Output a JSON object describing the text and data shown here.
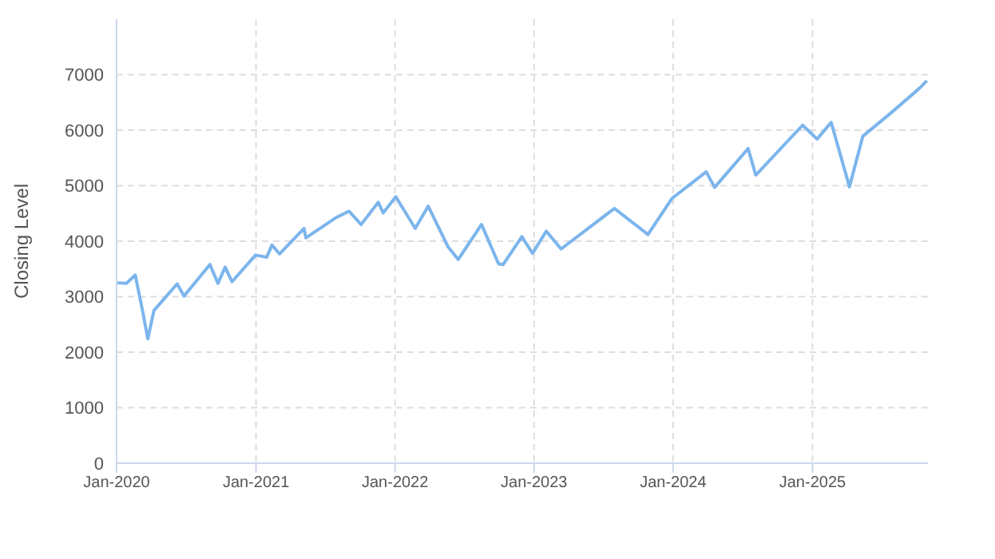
{
  "chart_data": {
    "type": "line",
    "ylabel": "Closing Level",
    "x": [
      "2020-01-02",
      "2020-01-27",
      "2020-02-19",
      "2020-03-09",
      "2020-03-23",
      "2020-04-08",
      "2020-06-08",
      "2020-06-26",
      "2020-09-02",
      "2020-09-23",
      "2020-10-12",
      "2020-10-30",
      "2020-12-31",
      "2021-01-29",
      "2021-02-12",
      "2021-03-04",
      "2021-05-07",
      "2021-05-12",
      "2021-07-29",
      "2021-09-02",
      "2021-10-04",
      "2021-11-18",
      "2021-12-01",
      "2022-01-03",
      "2022-02-23",
      "2022-03-29",
      "2022-05-20",
      "2022-06-16",
      "2022-08-16",
      "2022-09-30",
      "2022-10-12",
      "2022-11-30",
      "2022-12-28",
      "2023-02-02",
      "2023-03-13",
      "2023-07-31",
      "2023-10-27",
      "2023-12-29",
      "2024-03-28",
      "2024-04-19",
      "2024-07-16",
      "2024-08-05",
      "2024-12-06",
      "2025-01-13",
      "2025-02-19",
      "2025-04-08",
      "2025-05-13",
      "2025-07-31",
      "2025-10-08",
      "2025-10-28"
    ],
    "series": [
      {
        "color": "#7cb5ec",
        "values": [
          3250,
          3240,
          3390,
          2750,
          2240,
          2750,
          3230,
          3010,
          3580,
          3240,
          3530,
          3270,
          3750,
          3710,
          3930,
          3770,
          4230,
          4060,
          4420,
          4540,
          4300,
          4700,
          4510,
          4800,
          4230,
          4630,
          3900,
          3670,
          4300,
          3590,
          3580,
          4080,
          3780,
          4180,
          3860,
          4590,
          4120,
          4770,
          5250,
          4970,
          5670,
          5190,
          6090,
          5840,
          6140,
          4980,
          5890,
          6340,
          6750,
          6890
        ]
      }
    ],
    "xlim": [
      "2020-01-01",
      "2025-10-31"
    ],
    "xticks": [
      {
        "value": "2020-01-01",
        "label": "Jan-2020"
      },
      {
        "value": "2021-01-01",
        "label": "Jan-2021"
      },
      {
        "value": "2022-01-01",
        "label": "Jan-2022"
      },
      {
        "value": "2023-01-01",
        "label": "Jan-2023"
      },
      {
        "value": "2024-01-01",
        "label": "Jan-2024"
      },
      {
        "value": "2025-01-01",
        "label": "Jan-2025"
      }
    ],
    "ylim": [
      0,
      8000
    ],
    "yticks": [
      0,
      1000,
      2000,
      3000,
      4000,
      5000,
      6000,
      7000
    ],
    "grid": true,
    "legend": false,
    "marker": "none",
    "line_style": "solid"
  }
}
